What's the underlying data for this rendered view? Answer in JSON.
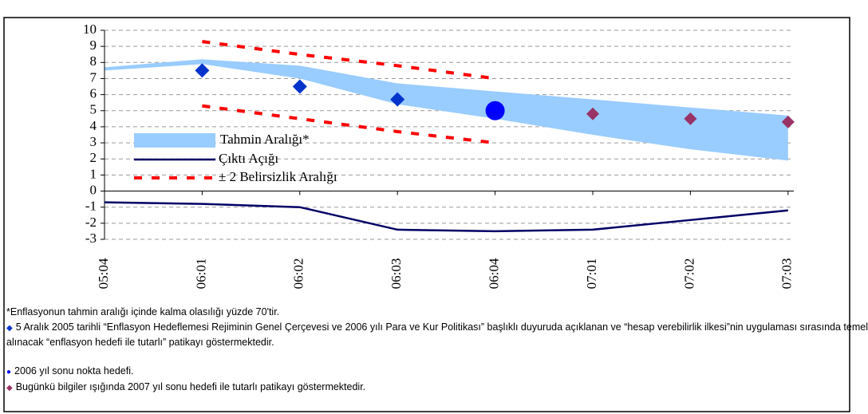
{
  "chart_data": {
    "type": "line",
    "categories": [
      "05:04",
      "06:01",
      "06:02",
      "06:03",
      "06:04",
      "07:01",
      "07:02",
      "07:03"
    ],
    "ylim": [
      -3,
      10
    ],
    "yticks": [
      -3,
      -2,
      -1,
      0,
      1,
      2,
      3,
      4,
      5,
      6,
      7,
      8,
      9,
      10
    ],
    "grid": true,
    "band": {
      "name": "Tahmin Aralığı*",
      "color": "#99ccff",
      "values": [
        7.7,
        8.2,
        7.8,
        6.7,
        6.2,
        5.7,
        5.2,
        4.7
      ],
      "lower": [
        7.5,
        7.9,
        7.0,
        5.4,
        4.5,
        3.5,
        2.6,
        1.9
      ]
    },
    "series": [
      {
        "name": "Çıktı Açığı",
        "color": "#000066",
        "values": [
          -0.7,
          -0.8,
          -1.0,
          -2.4,
          -2.5,
          -2.4,
          -1.8,
          -1.2
        ]
      },
      {
        "name": "± 2 Belirsizlik Aralığı",
        "color": "#ff0000",
        "dashed": true,
        "values": [
          null,
          9.3,
          8.5,
          7.8,
          7.0,
          null,
          null,
          null
        ],
        "lower": [
          null,
          5.3,
          4.5,
          3.7,
          3.0,
          null,
          null,
          null
        ]
      }
    ],
    "markers": [
      {
        "shape": "diamond",
        "color": "#0033cc",
        "size": 9,
        "values": [
          null,
          7.5,
          6.5,
          5.7,
          null,
          null,
          null,
          null
        ]
      },
      {
        "shape": "circle",
        "color": "#0000ff",
        "size": 12,
        "values": [
          null,
          null,
          null,
          null,
          5.0,
          null,
          null,
          null
        ]
      },
      {
        "shape": "diamond",
        "color": "#993366",
        "size": 8,
        "values": [
          null,
          null,
          null,
          null,
          null,
          4.8,
          4.5,
          4.3
        ]
      }
    ],
    "footnotes": [
      "*Enflasyonun tahmin aralığı içinde kalma olasılığı yüzde 70'tir.",
      "5 Aralık 2005 tarihli “Enflasyon Hedeflemesi Rejiminin Genel Çerçevesi ve 2006 yılı Para ve Kur Politikası” başlıklı duyuruda açıklanan ve “hesap verebilirlik ilkesi”nin uygulaması sırasında temel alınacak “enflasyon hedefi ile tutarlı” patikayı göstermektedir.",
      "2006 yıl sonu nokta hedefi.",
      "Bugünkü bilgiler ışığında 2007 yıl sonu hedefi ile tutarlı patikayı göstermektedir."
    ]
  }
}
